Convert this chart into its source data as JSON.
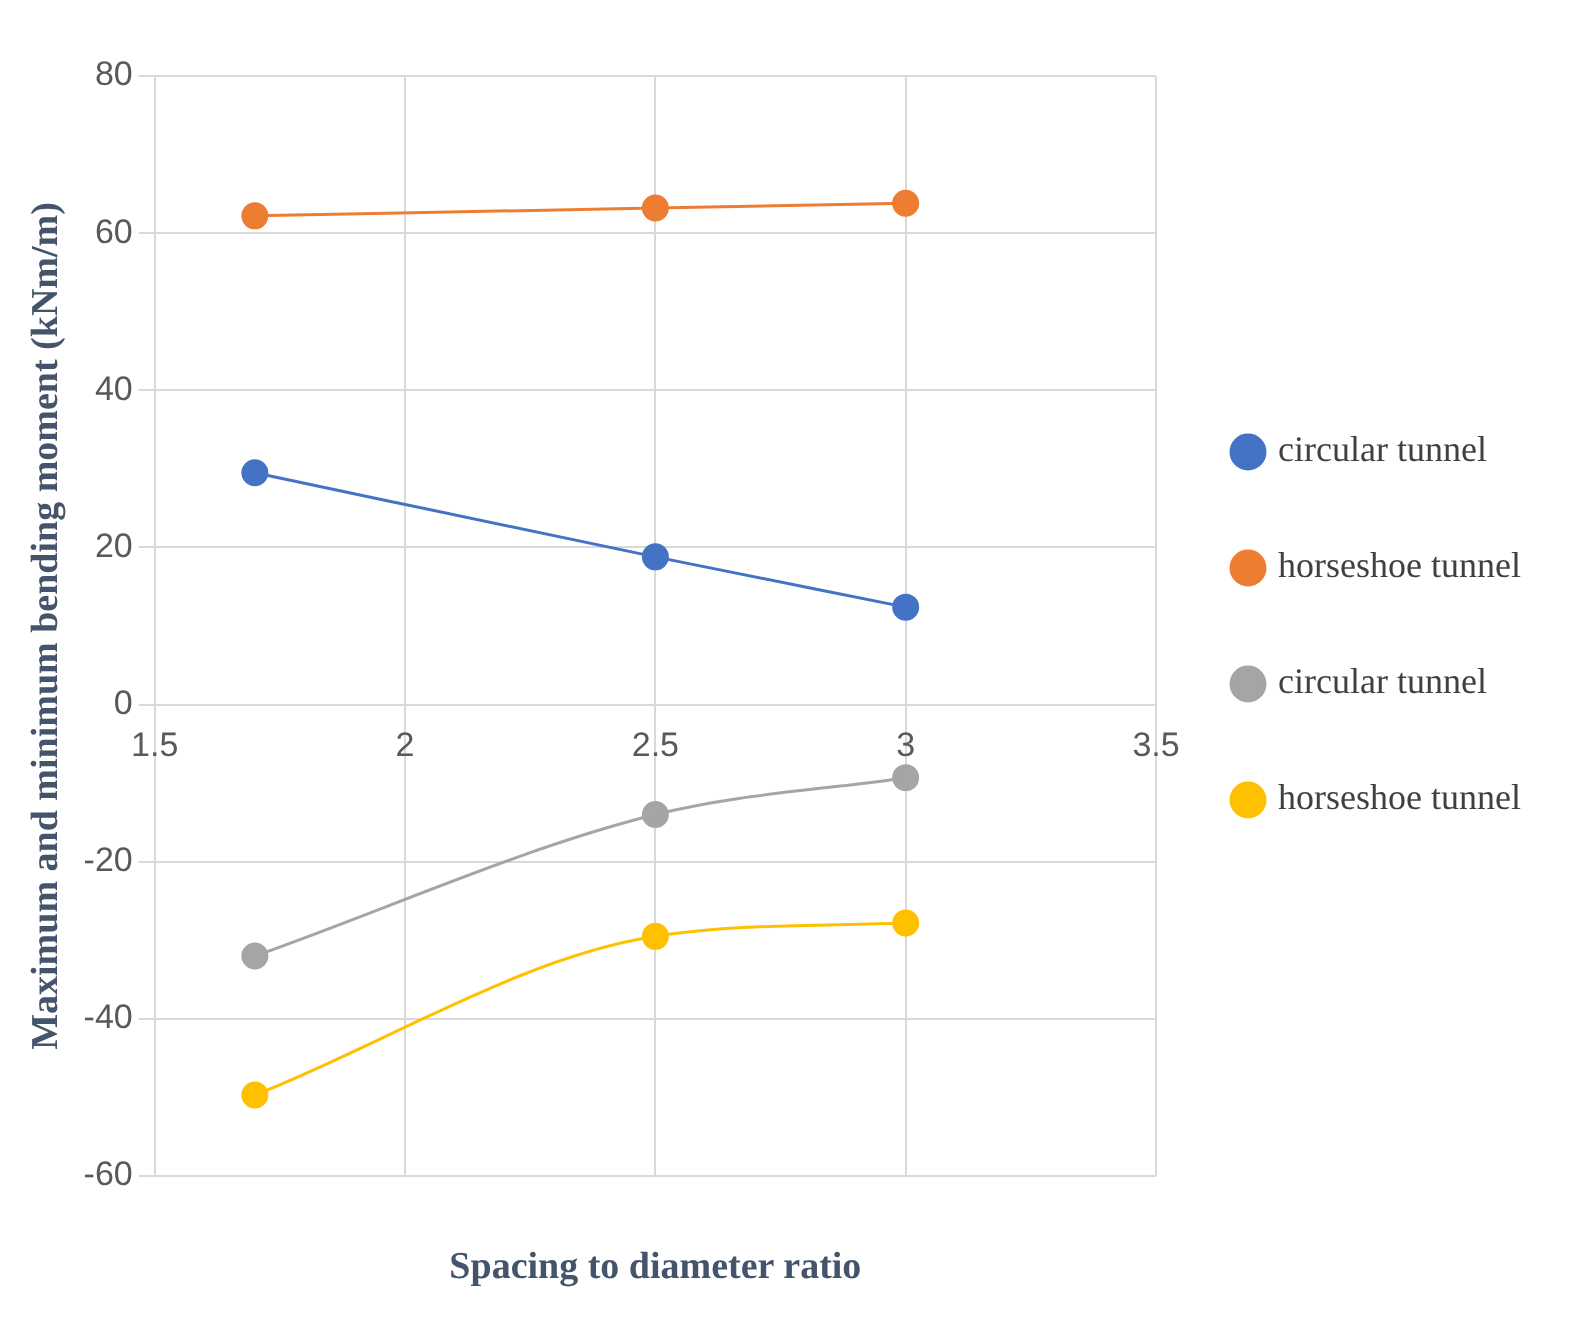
{
  "chart_data": {
    "type": "line",
    "xlabel": "Spacing to diameter ratio",
    "ylabel": "Maximum and minimum bending moment (kNm/m)",
    "x": [
      1.7,
      2.5,
      3
    ],
    "series": [
      {
        "name": "circular tunnel",
        "color": "#4472c4",
        "values": [
          29.5,
          18.8,
          12.4
        ]
      },
      {
        "name": "horseshoe tunnel",
        "color": "#ed7d31",
        "values": [
          62.2,
          63.2,
          63.8
        ]
      },
      {
        "name": "circular tunnel",
        "color": "#a5a5a5",
        "values": [
          -32,
          -14,
          -9.3
        ]
      },
      {
        "name": "horseshoe tunnel",
        "color": "#ffc000",
        "values": [
          -49.7,
          -29.5,
          -27.8
        ]
      }
    ],
    "xlim": [
      1.5,
      3.5
    ],
    "xticks": [
      1.5,
      2,
      2.5,
      3,
      3.5
    ],
    "ylim": [
      -60,
      80
    ],
    "yticks": [
      -60,
      -40,
      -20,
      0,
      20,
      40,
      60,
      80
    ],
    "grid": true,
    "legend": "right",
    "marker": "circle"
  }
}
